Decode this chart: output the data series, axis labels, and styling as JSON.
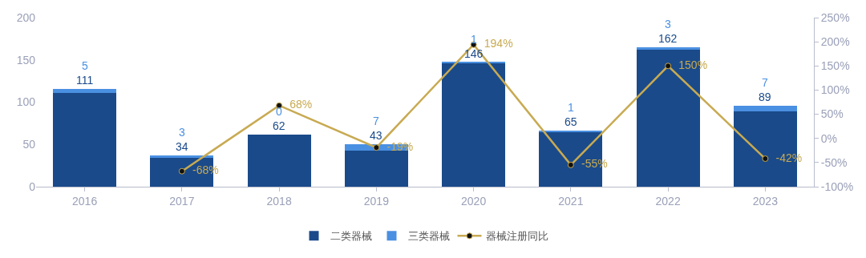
{
  "chart_data": {
    "type": "bar",
    "stacked": true,
    "categories": [
      "2016",
      "2017",
      "2018",
      "2019",
      "2020",
      "2021",
      "2022",
      "2023"
    ],
    "series": [
      {
        "name": "二类器械",
        "color": "#1a4a8a",
        "values": [
          111,
          34,
          62,
          43,
          146,
          65,
          162,
          89
        ]
      },
      {
        "name": "三类器械",
        "color": "#4a90e2",
        "values": [
          5,
          3,
          0,
          7,
          1,
          1,
          3,
          7
        ]
      },
      {
        "name": "器械注册同比",
        "type": "line",
        "axis": "y2",
        "color": "#c8aa52",
        "values": [
          null,
          -68,
          68,
          -19,
          194,
          -55,
          150,
          -42
        ],
        "value_labels": [
          null,
          "-68%",
          "68%",
          "-19%",
          "194%",
          "-55%",
          "150%",
          "-42%"
        ]
      }
    ],
    "ylim": [
      0,
      200
    ],
    "yticks": [
      0,
      50,
      100,
      150,
      200
    ],
    "y2lim": [
      -100,
      250
    ],
    "y2ticks": [
      {
        "value": -100,
        "label": "-100%"
      },
      {
        "value": -50,
        "label": "-50%"
      },
      {
        "value": 0,
        "label": "0%"
      },
      {
        "value": 50,
        "label": "50%"
      },
      {
        "value": 100,
        "label": "100%"
      },
      {
        "value": 150,
        "label": "150%"
      },
      {
        "value": 200,
        "label": "200%"
      },
      {
        "value": 250,
        "label": "250%"
      }
    ],
    "data_labels": true,
    "grid": false,
    "legend": "bottom",
    "marker": "circle",
    "line_style": "solid"
  }
}
